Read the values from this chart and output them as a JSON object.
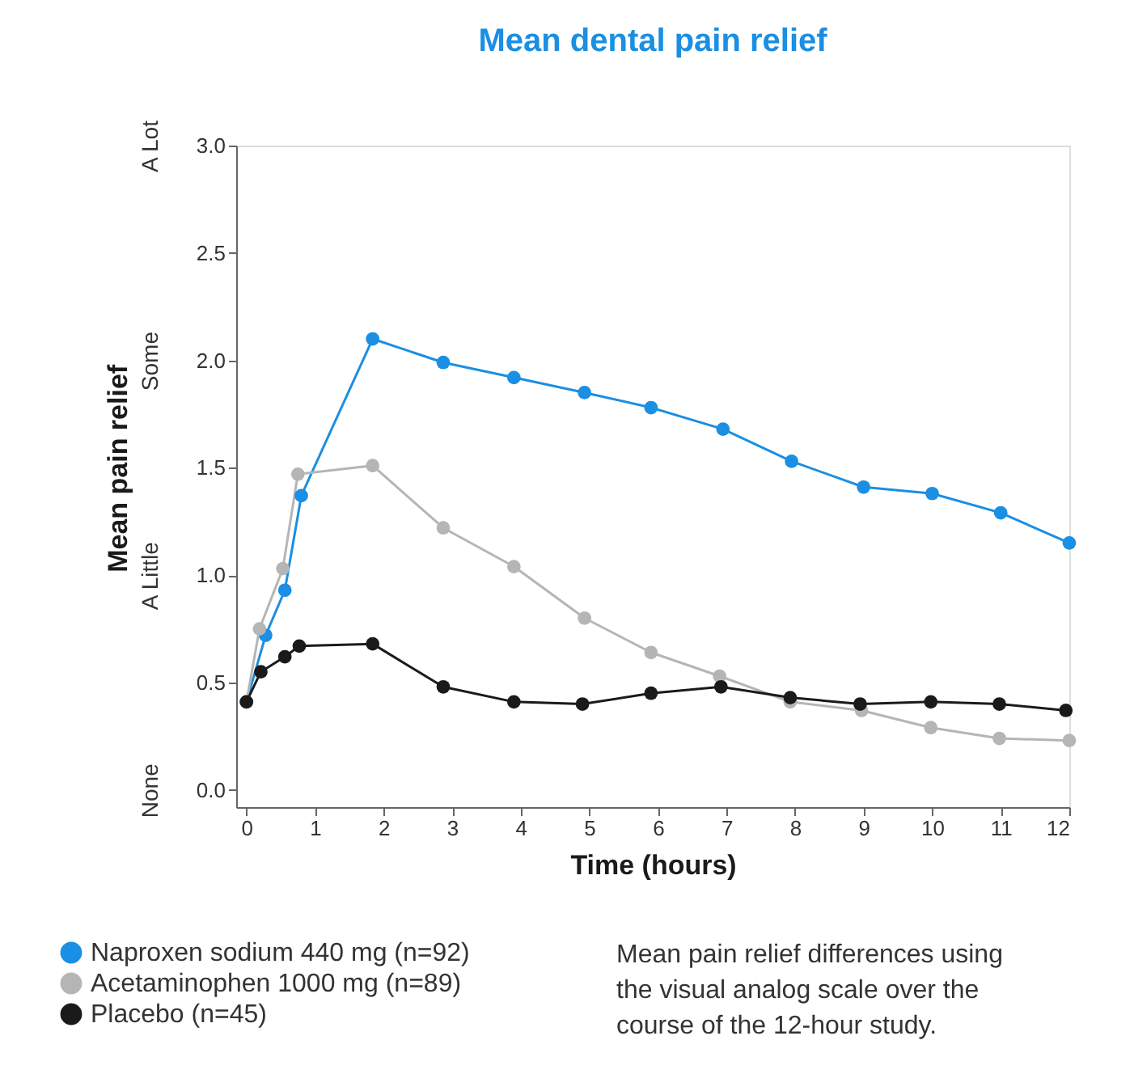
{
  "chart_data": {
    "type": "line",
    "title": "Mean dental pain relief",
    "xlabel": "Time (hours)",
    "ylabel": "Mean pain relief",
    "xlim": [
      -0.15,
      12
    ],
    "xticks": [
      0,
      1,
      2,
      3,
      4,
      5,
      6,
      7,
      8,
      9,
      10,
      11,
      12
    ],
    "ylim": [
      -0.08,
      3.0
    ],
    "yticks": [
      {
        "value": 0,
        "label": "0.0"
      },
      {
        "value": 0.5,
        "label": "0.5"
      },
      {
        "value": 1,
        "label": "1.0"
      },
      {
        "value": 1.5,
        "label": "1.5"
      },
      {
        "value": 2,
        "label": "2.0"
      },
      {
        "value": 2.5,
        "label": "2.5"
      },
      {
        "value": 3,
        "label": "3.0"
      }
    ],
    "y2_categories": [
      "A Lot",
      "Some",
      "A Little",
      "None"
    ],
    "grid": false,
    "legend": "bottom left",
    "marker": "circle",
    "line_style": "solid",
    "series": [
      {
        "name": "Naproxen sodium 440 mg (n=92)",
        "color": "#1a8fe3",
        "x": [
          0,
          0.28,
          0.56,
          0.8,
          1.84,
          2.87,
          3.9,
          4.93,
          5.9,
          6.95,
          7.95,
          9,
          10,
          11,
          12
        ],
        "values": [
          0.41,
          0.72,
          0.93,
          1.37,
          2.1,
          1.99,
          1.92,
          1.85,
          1.78,
          1.68,
          1.53,
          1.41,
          1.38,
          1.29,
          1.15
        ]
      },
      {
        "name": "Acetaminophen 1000 mg (n=89)",
        "color": "#b5b5b5",
        "x": [
          0,
          0.19,
          0.53,
          0.75,
          1.84,
          2.87,
          3.9,
          4.93,
          5.9,
          6.9,
          7.93,
          8.97,
          9.98,
          10.98,
          12
        ],
        "values": [
          0.41,
          0.75,
          1.03,
          1.47,
          1.51,
          1.22,
          1.04,
          0.8,
          0.64,
          0.53,
          0.41,
          0.37,
          0.29,
          0.24,
          0.23
        ]
      },
      {
        "name": "Placebo (n=45)",
        "color": "#1a1a1a",
        "x": [
          0,
          0.21,
          0.56,
          0.77,
          1.84,
          2.87,
          3.9,
          4.9,
          5.9,
          6.92,
          7.93,
          8.95,
          9.98,
          10.98,
          11.95
        ],
        "values": [
          0.41,
          0.55,
          0.62,
          0.67,
          0.68,
          0.48,
          0.41,
          0.4,
          0.45,
          0.48,
          0.43,
          0.4,
          0.41,
          0.4,
          0.37
        ]
      }
    ],
    "annotations": [
      "Mean pain relief differences using the visual analog scale over the course of the 12-hour study."
    ]
  }
}
